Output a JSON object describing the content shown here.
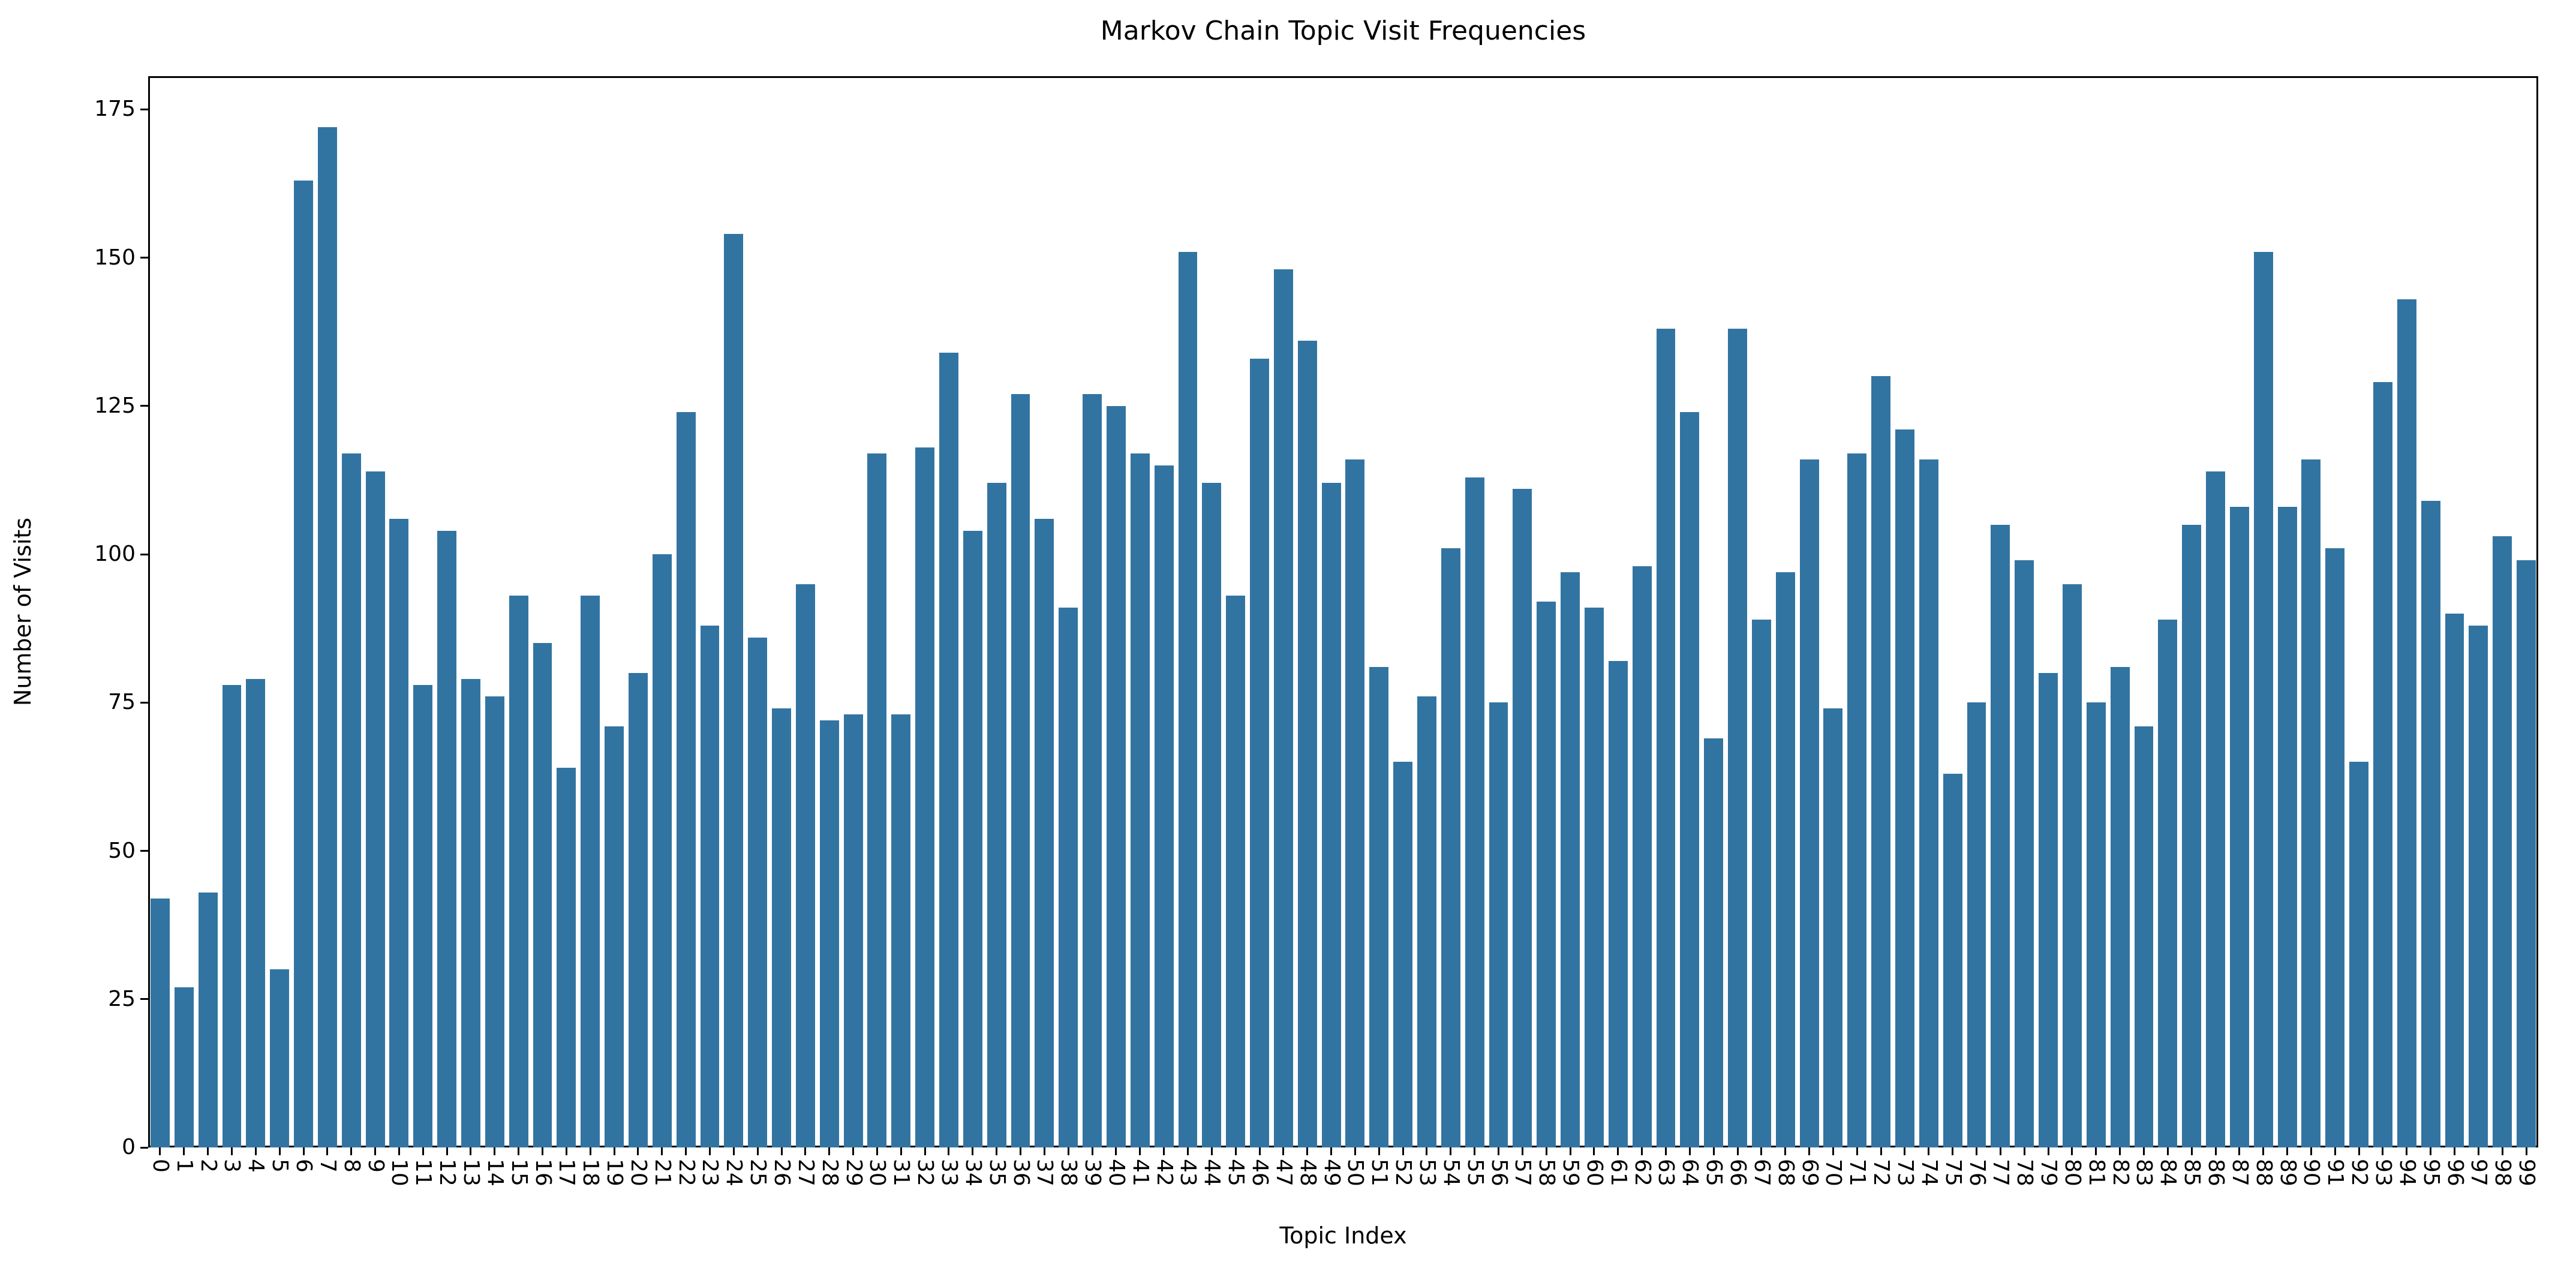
{
  "title": "Markov Chain Topic Visit Frequencies",
  "colors": {
    "bar": "#3274a1",
    "axis": "#000000",
    "text": "#000000",
    "background": "#ffffff"
  },
  "chart_data": {
    "type": "bar",
    "title": "Markov Chain Topic Visit Frequencies",
    "xlabel": "Topic Index",
    "ylabel": "Number of Visits",
    "grid": false,
    "legend": null,
    "ylim": [
      0,
      180.6
    ],
    "yticks": [
      0,
      25,
      50,
      75,
      100,
      125,
      150,
      175
    ],
    "categories": [
      "0",
      "1",
      "2",
      "3",
      "4",
      "5",
      "6",
      "7",
      "8",
      "9",
      "10",
      "11",
      "12",
      "13",
      "14",
      "15",
      "16",
      "17",
      "18",
      "19",
      "20",
      "21",
      "22",
      "23",
      "24",
      "25",
      "26",
      "27",
      "28",
      "29",
      "30",
      "31",
      "32",
      "33",
      "34",
      "35",
      "36",
      "37",
      "38",
      "39",
      "40",
      "41",
      "42",
      "43",
      "44",
      "45",
      "46",
      "47",
      "48",
      "49",
      "50",
      "51",
      "52",
      "53",
      "54",
      "55",
      "56",
      "57",
      "58",
      "59",
      "60",
      "61",
      "62",
      "63",
      "64",
      "65",
      "66",
      "67",
      "68",
      "69",
      "70",
      "71",
      "72",
      "73",
      "74",
      "75",
      "76",
      "77",
      "78",
      "79",
      "80",
      "81",
      "82",
      "83",
      "84",
      "85",
      "86",
      "87",
      "88",
      "89",
      "90",
      "91",
      "92",
      "93",
      "94",
      "95",
      "96",
      "97",
      "98",
      "99"
    ],
    "values": [
      42,
      27,
      43,
      78,
      79,
      30,
      163,
      172,
      117,
      114,
      106,
      78,
      104,
      79,
      76,
      93,
      85,
      64,
      93,
      71,
      80,
      100,
      124,
      88,
      154,
      86,
      74,
      95,
      72,
      73,
      117,
      73,
      118,
      134,
      104,
      112,
      127,
      106,
      91,
      127,
      125,
      117,
      115,
      151,
      112,
      93,
      133,
      148,
      136,
      112,
      116,
      81,
      65,
      76,
      101,
      113,
      75,
      111,
      92,
      97,
      91,
      82,
      98,
      138,
      124,
      69,
      138,
      89,
      97,
      116,
      74,
      117,
      130,
      121,
      116,
      63,
      75,
      105,
      99,
      80,
      95,
      75,
      81,
      71,
      89,
      105,
      114,
      108,
      151,
      108,
      116,
      101,
      65,
      129,
      143,
      109,
      90,
      88,
      103,
      99
    ]
  }
}
